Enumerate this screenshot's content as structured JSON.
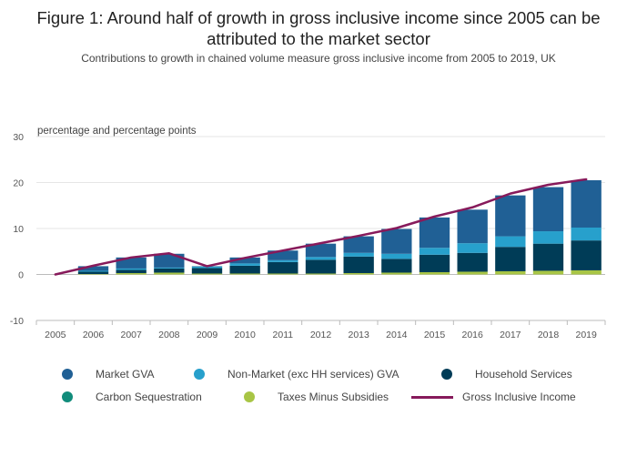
{
  "title": "Figure 1: Around half of growth in gross inclusive income since 2005 can be attributed to the market sector",
  "subtitle": "Contributions to growth in chained volume measure gross inclusive income from 2005 to 2019, UK",
  "chart_data": {
    "type": "bar",
    "stacked": true,
    "ylabel": "percentage and percentage points",
    "ylim": [
      -10,
      30
    ],
    "yticks": [
      -10,
      0,
      10,
      20,
      30
    ],
    "grid": true,
    "legend_position": "bottom",
    "categories": [
      "2005",
      "2006",
      "2007",
      "2008",
      "2009",
      "2010",
      "2011",
      "2012",
      "2013",
      "2014",
      "2015",
      "2016",
      "2017",
      "2018",
      "2019"
    ],
    "series": [
      {
        "name": "Taxes Minus Subsidies",
        "color": "#a8c545",
        "kind": "bar",
        "values": [
          0,
          0.1,
          0.3,
          0.4,
          0.2,
          0.2,
          0.2,
          0.2,
          0.3,
          0.4,
          0.5,
          0.6,
          0.7,
          0.8,
          0.9
        ]
      },
      {
        "name": "Carbon Sequestration",
        "color": "#118c7b",
        "kind": "bar",
        "values": [
          0,
          0,
          0,
          0,
          0,
          0,
          0,
          0,
          0,
          0,
          0,
          0,
          0,
          0,
          0
        ]
      },
      {
        "name": "Household Services",
        "color": "#003c57",
        "kind": "bar",
        "values": [
          0,
          0.5,
          0.7,
          0.9,
          1.2,
          1.7,
          2.5,
          3.0,
          3.6,
          3.0,
          3.8,
          4.1,
          5.3,
          5.9,
          6.5
        ]
      },
      {
        "name": "Non-Market (exc HH services) GVA",
        "color": "#27a0cc",
        "kind": "bar",
        "values": [
          0,
          0.2,
          0.3,
          0.2,
          0.3,
          0.5,
          0.4,
          0.6,
          0.8,
          1.1,
          1.5,
          2.1,
          2.3,
          2.7,
          2.8
        ]
      },
      {
        "name": "Market GVA",
        "color": "#206095",
        "kind": "bar",
        "values": [
          0,
          1.0,
          2.4,
          3.0,
          0.1,
          1.3,
          2.1,
          2.9,
          3.6,
          5.4,
          6.6,
          7.3,
          8.9,
          9.6,
          10.3
        ]
      },
      {
        "name": "Gross Inclusive Income",
        "color": "#871a5b",
        "kind": "line",
        "values": [
          0,
          1.9,
          3.7,
          4.6,
          1.8,
          3.6,
          5.2,
          6.8,
          8.4,
          10.1,
          12.6,
          14.6,
          17.6,
          19.5,
          20.7
        ]
      }
    ]
  },
  "legend": [
    {
      "name": "Market GVA",
      "color": "#206095",
      "kind": "dot"
    },
    {
      "name": "Non-Market (exc HH services) GVA",
      "color": "#27a0cc",
      "kind": "dot"
    },
    {
      "name": "Household Services",
      "color": "#003c57",
      "kind": "dot"
    },
    {
      "name": "Carbon Sequestration",
      "color": "#118c7b",
      "kind": "dot"
    },
    {
      "name": "Taxes Minus Subsidies",
      "color": "#a8c545",
      "kind": "dot"
    },
    {
      "name": "Gross Inclusive Income",
      "color": "#871a5b",
      "kind": "line"
    }
  ]
}
